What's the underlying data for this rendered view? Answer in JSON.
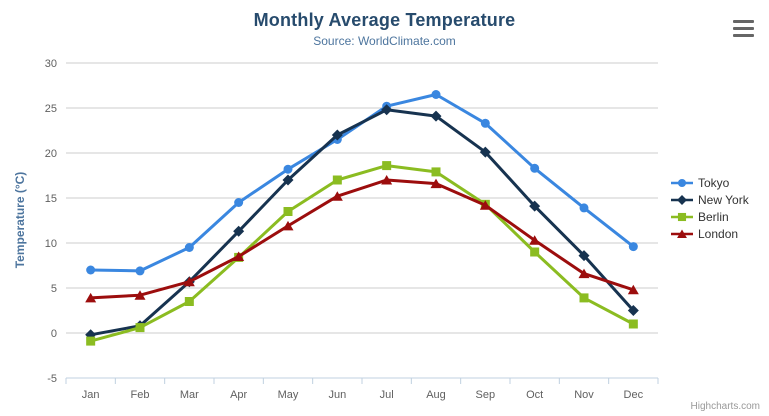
{
  "chart": {
    "title": "Monthly Average Temperature",
    "subtitle": "Source: WorldClimate.com",
    "y_axis_title": "Temperature (°C)",
    "credits": "Highcharts.com",
    "menu_icon": "hamburger-icon"
  },
  "chart_data": {
    "type": "line",
    "title": "Monthly Average Temperature",
    "subtitle": "Source: WorldClimate.com",
    "xlabel": "",
    "ylabel": "Temperature (°C)",
    "categories": [
      "Jan",
      "Feb",
      "Mar",
      "Apr",
      "May",
      "Jun",
      "Jul",
      "Aug",
      "Sep",
      "Oct",
      "Nov",
      "Dec"
    ],
    "ylim": [
      -5,
      30
    ],
    "ytick_step": 5,
    "grid": true,
    "legend_position": "right",
    "colors": {
      "grid_line": "#cccccc",
      "axis_line": "#c0d0e0",
      "tick_label": "#606060"
    },
    "series": [
      {
        "name": "Tokyo",
        "color": "#3a87e0",
        "marker": "circle",
        "values": [
          7.0,
          6.9,
          9.5,
          14.5,
          18.2,
          21.5,
          25.2,
          26.5,
          23.3,
          18.3,
          13.9,
          9.6
        ]
      },
      {
        "name": "New York",
        "color": "#173350",
        "marker": "diamond",
        "values": [
          -0.2,
          0.8,
          5.7,
          11.3,
          17.0,
          22.0,
          24.8,
          24.1,
          20.1,
          14.1,
          8.6,
          2.5
        ]
      },
      {
        "name": "Berlin",
        "color": "#8bbc21",
        "marker": "square",
        "values": [
          -0.9,
          0.6,
          3.5,
          8.4,
          13.5,
          17.0,
          18.6,
          17.9,
          14.3,
          9.0,
          3.9,
          1.0
        ]
      },
      {
        "name": "London",
        "color": "#9c0d0d",
        "marker": "triangle",
        "values": [
          3.9,
          4.2,
          5.7,
          8.5,
          11.9,
          15.2,
          17.0,
          16.6,
          14.2,
          10.3,
          6.6,
          4.8
        ]
      }
    ]
  }
}
